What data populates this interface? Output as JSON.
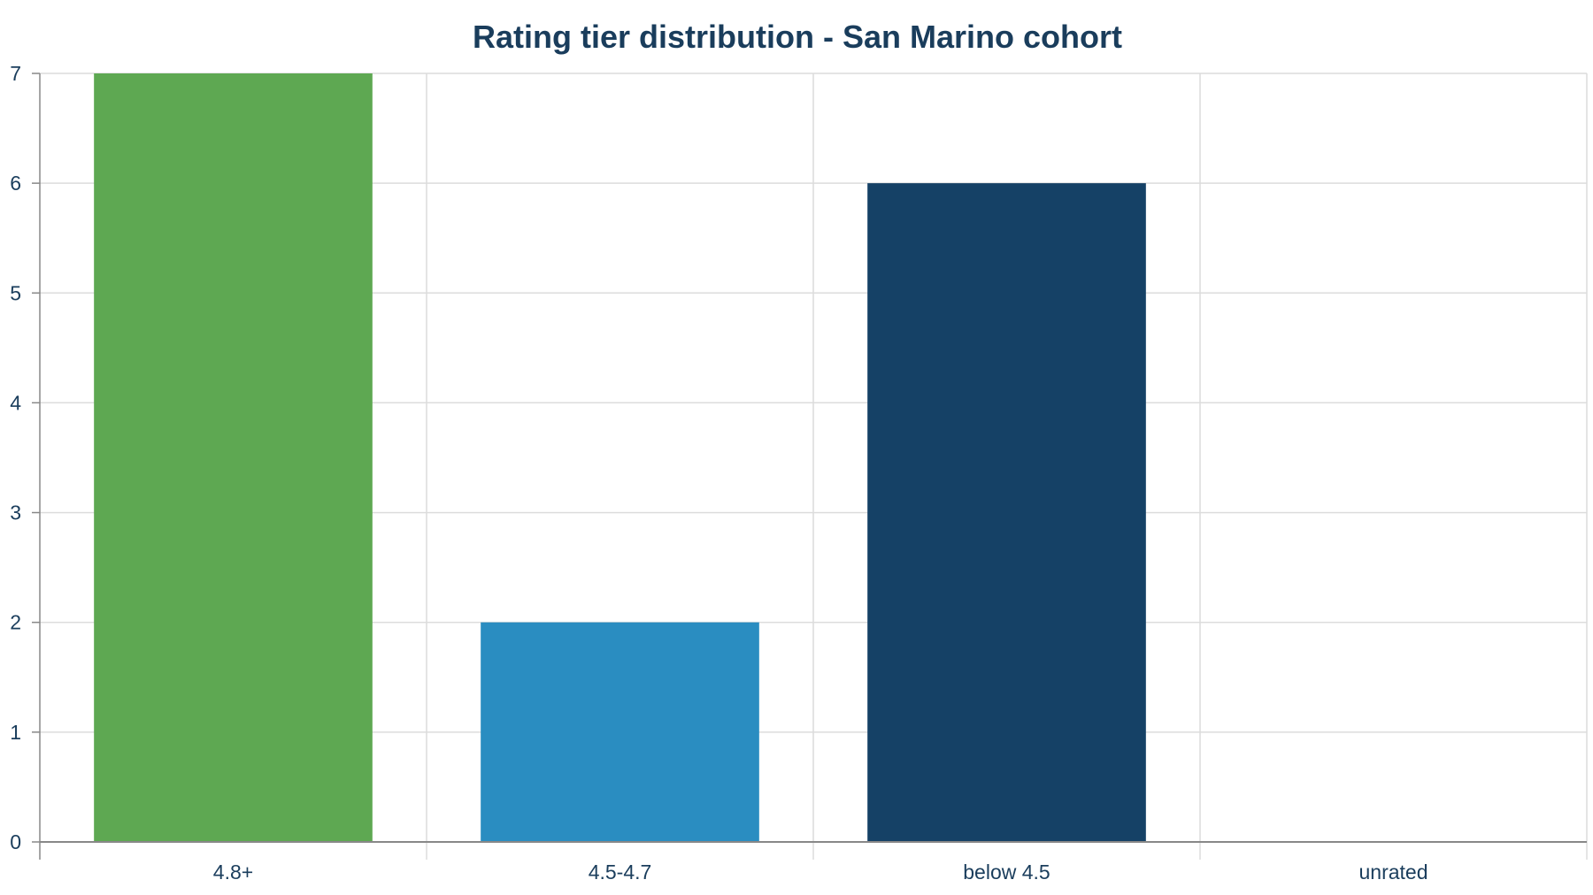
{
  "chart_data": {
    "type": "bar",
    "title": "Rating tier distribution - San Marino cohort",
    "xlabel": "",
    "ylabel": "",
    "categories": [
      "4.8+",
      "4.5-4.7",
      "below 4.5",
      "unrated"
    ],
    "values": [
      7,
      2,
      6,
      0
    ],
    "ylim": [
      0,
      7
    ],
    "yticks": [
      0,
      1,
      2,
      3,
      4,
      5,
      6,
      7
    ],
    "grid": true,
    "legend": "none"
  },
  "colors": {
    "bars": [
      "#5ea852",
      "#2a8dc1",
      "#154166",
      "#154166"
    ],
    "text": "#1a3d5c",
    "grid": "#dcdcdc",
    "axis": "#888888"
  }
}
